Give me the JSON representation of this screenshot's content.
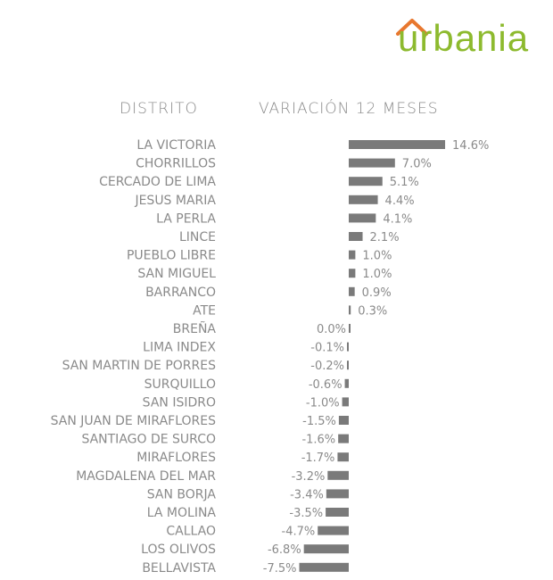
{
  "logo": {
    "text": "urbania",
    "brand_color": "#8dba2e",
    "roof_color": "#e8772e"
  },
  "header": {
    "col1": "DISTRITO",
    "col2": "VARIACIÓN 12 MESES"
  },
  "chart_data": {
    "type": "bar",
    "orientation": "horizontal",
    "categories": [
      "LA VICTORIA",
      "CHORRILLOS",
      "CERCADO DE LIMA",
      "JESUS MARIA",
      "LA PERLA",
      "LINCE",
      "PUEBLO LIBRE",
      "SAN MIGUEL",
      "BARRANCO",
      "ATE",
      "BREÑA",
      "LIMA INDEX",
      "SAN MARTIN DE PORRES",
      "SURQUILLO",
      "SAN ISIDRO",
      "SAN JUAN DE MIRAFLORES",
      "SANTIAGO DE SURCO",
      "MIRAFLORES",
      "MAGDALENA DEL MAR",
      "SAN BORJA",
      "LA MOLINA",
      "CALLAO",
      "LOS OLIVOS",
      "BELLAVISTA"
    ],
    "values": [
      14.6,
      7.0,
      5.1,
      4.4,
      4.1,
      2.1,
      1.0,
      1.0,
      0.9,
      0.3,
      0.0,
      -0.1,
      -0.2,
      -0.6,
      -1.0,
      -1.5,
      -1.6,
      -1.7,
      -3.2,
      -3.4,
      -3.5,
      -4.7,
      -6.8,
      -7.5
    ],
    "value_labels": [
      "14.6%",
      "7.0%",
      "5.1%",
      "4.4%",
      "4.1%",
      "2.1%",
      "1.0%",
      "1.0%",
      "0.9%",
      "0.3%",
      "0.0%",
      "-0.1%",
      "-0.2%",
      "-0.6%",
      "-1.0%",
      "-1.5%",
      "-1.6%",
      "-1.7%",
      "-3.2%",
      "-3.4%",
      "-3.5%",
      "-4.7%",
      "-6.8%",
      "-7.5%"
    ],
    "bar_color": "#7a7a7a",
    "text_color": "#8a8a8a",
    "grid": false,
    "legend": "none"
  }
}
